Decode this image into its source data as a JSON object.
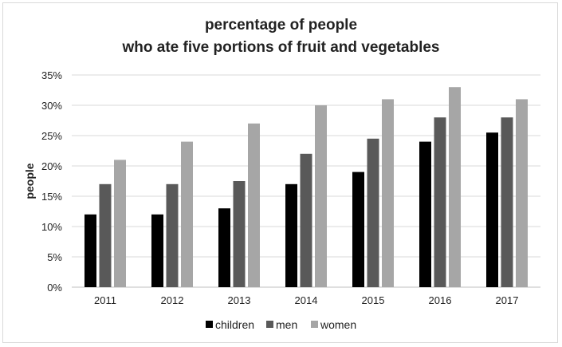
{
  "chart_data": {
    "type": "bar",
    "title": [
      "percentage of people",
      "who ate five portions of fruit and vegetables"
    ],
    "ylabel": "people",
    "xlabel": "",
    "categories": [
      "2011",
      "2012",
      "2013",
      "2014",
      "2015",
      "2016",
      "2017"
    ],
    "series": [
      {
        "name": "children",
        "color": "#000000",
        "values": [
          12,
          12,
          13,
          17,
          19,
          24,
          25.5
        ]
      },
      {
        "name": "men",
        "color": "#595959",
        "values": [
          17,
          17,
          17.5,
          22,
          24.5,
          28,
          28
        ]
      },
      {
        "name": "women",
        "color": "#a6a6a6",
        "values": [
          21,
          24,
          27,
          30,
          31,
          33,
          31
        ]
      }
    ],
    "ylim": [
      0,
      35
    ],
    "yticks": [
      0,
      5,
      10,
      15,
      20,
      25,
      30,
      35
    ],
    "ytick_suffix": "%",
    "grid": true,
    "legend_position": "bottom"
  }
}
